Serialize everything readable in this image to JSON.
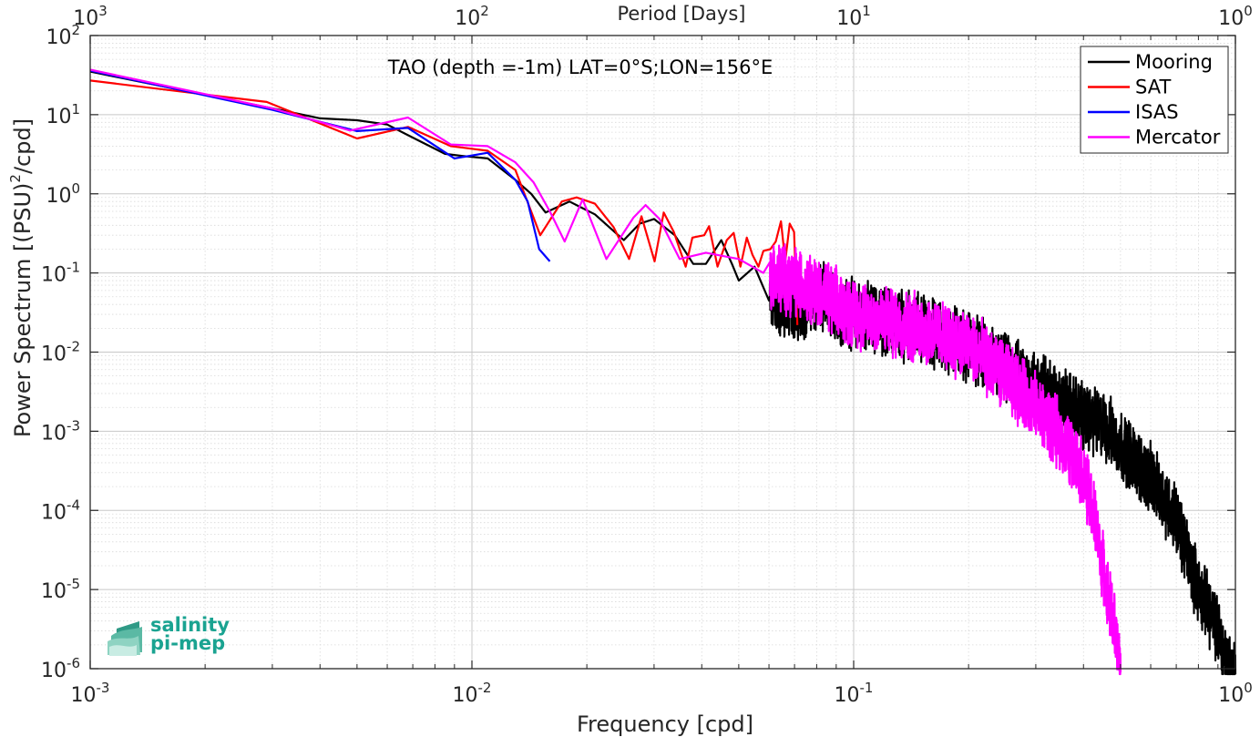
{
  "chart_data": {
    "type": "line",
    "title": "TAO (depth =-1m) LAT=0°S;LON=156°E",
    "xlabel": "Frequency [cpd]",
    "ylabel": "Power Spectrum [(PSU)²/cpd]",
    "ylabel_parts": {
      "main": "Power Spectrum [(PSU)",
      "sup": "2",
      "tail": "/cpd]"
    },
    "top_xlabel": "Period [Days]",
    "xscale": "log",
    "yscale": "log",
    "xlim": [
      0.001,
      1
    ],
    "ylim": [
      1e-06,
      100
    ],
    "grid": true,
    "legend_position": "top-right",
    "x_ticks": [
      {
        "base": "10",
        "exp": "-3",
        "value": 0.001
      },
      {
        "base": "10",
        "exp": "-2",
        "value": 0.01
      },
      {
        "base": "10",
        "exp": "-1",
        "value": 0.1
      },
      {
        "base": "10",
        "exp": "0",
        "value": 1
      }
    ],
    "top_ticks": [
      {
        "base": "10",
        "exp": "3",
        "value": 0.001
      },
      {
        "base": "10",
        "exp": "2",
        "value": 0.01
      },
      {
        "base": "10",
        "exp": "1",
        "value": 0.1
      },
      {
        "base": "10",
        "exp": "0",
        "value": 1
      }
    ],
    "y_ticks": [
      {
        "base": "10",
        "exp": "2",
        "value": 100
      },
      {
        "base": "10",
        "exp": "1",
        "value": 10
      },
      {
        "base": "10",
        "exp": "0",
        "value": 1
      },
      {
        "base": "10",
        "exp": "-1",
        "value": 0.1
      },
      {
        "base": "10",
        "exp": "-2",
        "value": 0.01
      },
      {
        "base": "10",
        "exp": "-3",
        "value": 0.001
      },
      {
        "base": "10",
        "exp": "-4",
        "value": 0.0001
      },
      {
        "base": "10",
        "exp": "-5",
        "value": 1e-05
      },
      {
        "base": "10",
        "exp": "-6",
        "value": 1e-06
      }
    ],
    "series": [
      {
        "name": "Mooring",
        "color": "#000000",
        "noisy": true,
        "points": [
          [
            0.001,
            35
          ],
          [
            0.003,
            12
          ],
          [
            0.004,
            9
          ],
          [
            0.005,
            8.5
          ],
          [
            0.006,
            7.5
          ],
          [
            0.0068,
            5.5
          ],
          [
            0.0085,
            3.2
          ],
          [
            0.0095,
            3.0
          ],
          [
            0.011,
            2.8
          ],
          [
            0.013,
            1.5
          ],
          [
            0.0143,
            1.0
          ],
          [
            0.0156,
            0.58
          ],
          [
            0.018,
            0.8
          ],
          [
            0.021,
            0.55
          ],
          [
            0.025,
            0.26
          ],
          [
            0.0275,
            0.42
          ],
          [
            0.03,
            0.48
          ],
          [
            0.034,
            0.3
          ],
          [
            0.038,
            0.13
          ],
          [
            0.041,
            0.13
          ],
          [
            0.045,
            0.26
          ],
          [
            0.048,
            0.13
          ],
          [
            0.05,
            0.08
          ],
          [
            0.055,
            0.12
          ],
          [
            0.06,
            0.045
          ],
          [
            0.07,
            0.035
          ],
          [
            0.08,
            0.05
          ],
          [
            0.1,
            0.03
          ],
          [
            0.12,
            0.025
          ],
          [
            0.15,
            0.02
          ],
          [
            0.2,
            0.012
          ],
          [
            0.25,
            0.006
          ],
          [
            0.3,
            0.004
          ],
          [
            0.35,
            0.0025
          ],
          [
            0.4,
            0.0015
          ],
          [
            0.45,
            0.0012
          ],
          [
            0.5,
            0.0007
          ],
          [
            0.6,
            0.00025
          ],
          [
            0.7,
            8e-05
          ],
          [
            0.8,
            1e-05
          ],
          [
            0.88,
            4e-06
          ],
          [
            0.94,
            1.5e-06
          ],
          [
            1.0,
            8e-07
          ]
        ]
      },
      {
        "name": "SAT",
        "color": "#ff0000",
        "noisy": false,
        "points": [
          [
            0.001,
            27
          ],
          [
            0.0029,
            14.5
          ],
          [
            0.005,
            5.0
          ],
          [
            0.0068,
            7.0
          ],
          [
            0.0088,
            4.0
          ],
          [
            0.011,
            3.5
          ],
          [
            0.013,
            2.0
          ],
          [
            0.0151,
            0.3
          ],
          [
            0.0172,
            0.8
          ],
          [
            0.0188,
            0.9
          ],
          [
            0.021,
            0.75
          ],
          [
            0.0235,
            0.38
          ],
          [
            0.0258,
            0.15
          ],
          [
            0.0278,
            0.52
          ],
          [
            0.0301,
            0.14
          ],
          [
            0.0318,
            0.58
          ],
          [
            0.0338,
            0.33
          ],
          [
            0.0363,
            0.12
          ],
          [
            0.0378,
            0.28
          ],
          [
            0.0406,
            0.3
          ],
          [
            0.0418,
            0.39
          ],
          [
            0.044,
            0.12
          ],
          [
            0.0465,
            0.26
          ],
          [
            0.0485,
            0.32
          ],
          [
            0.0505,
            0.12
          ],
          [
            0.0525,
            0.28
          ],
          [
            0.0543,
            0.17
          ],
          [
            0.0563,
            0.12
          ],
          [
            0.058,
            0.19
          ],
          [
            0.0605,
            0.2
          ],
          [
            0.0625,
            0.25
          ],
          [
            0.0645,
            0.45
          ],
          [
            0.0662,
            0.14
          ],
          [
            0.068,
            0.42
          ],
          [
            0.0698,
            0.33
          ],
          [
            0.0712,
            0.022
          ]
        ]
      },
      {
        "name": "ISAS",
        "color": "#0000ff",
        "noisy": false,
        "points": [
          [
            0.001,
            36
          ],
          [
            0.003,
            11.5
          ],
          [
            0.005,
            6.2
          ],
          [
            0.0068,
            6.8
          ],
          [
            0.009,
            2.8
          ],
          [
            0.011,
            3.3
          ],
          [
            0.013,
            1.5
          ],
          [
            0.014,
            0.8
          ],
          [
            0.015,
            0.2
          ],
          [
            0.016,
            0.14
          ]
        ]
      },
      {
        "name": "Mercator",
        "color": "#ff00ff",
        "noisy": true,
        "points": [
          [
            0.001,
            37
          ],
          [
            0.003,
            12
          ],
          [
            0.0048,
            6.3
          ],
          [
            0.0068,
            9.2
          ],
          [
            0.0088,
            4.2
          ],
          [
            0.011,
            4.0
          ],
          [
            0.013,
            2.5
          ],
          [
            0.0145,
            1.4
          ],
          [
            0.016,
            0.6
          ],
          [
            0.0175,
            0.25
          ],
          [
            0.0195,
            0.85
          ],
          [
            0.0225,
            0.15
          ],
          [
            0.0265,
            0.5
          ],
          [
            0.0285,
            0.72
          ],
          [
            0.031,
            0.48
          ],
          [
            0.035,
            0.15
          ],
          [
            0.041,
            0.18
          ],
          [
            0.05,
            0.15
          ],
          [
            0.058,
            0.1
          ],
          [
            0.07,
            0.08
          ],
          [
            0.08,
            0.06
          ],
          [
            0.1,
            0.03
          ],
          [
            0.12,
            0.025
          ],
          [
            0.15,
            0.02
          ],
          [
            0.2,
            0.012
          ],
          [
            0.25,
            0.005
          ],
          [
            0.3,
            0.002
          ],
          [
            0.35,
            0.0008
          ],
          [
            0.4,
            0.0003
          ],
          [
            0.43,
            7e-05
          ],
          [
            0.46,
            1e-05
          ],
          [
            0.48,
            4e-06
          ],
          [
            0.5,
            9e-07
          ]
        ]
      }
    ]
  },
  "logo": {
    "line1": "salinity",
    "line2": "pi-mep"
  }
}
